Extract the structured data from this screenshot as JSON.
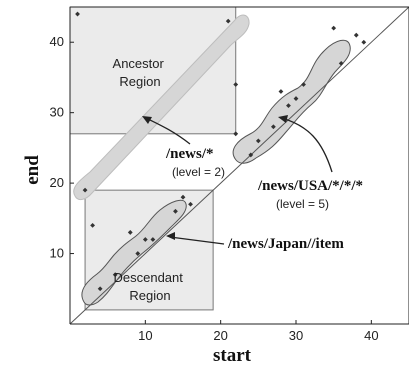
{
  "chart_data": {
    "type": "scatter",
    "xlabel": "start",
    "ylabel": "end",
    "xlim": [
      0,
      45
    ],
    "ylim": [
      0,
      45
    ],
    "x_ticks": [
      10,
      20,
      30,
      40
    ],
    "y_ticks": [
      10,
      20,
      30,
      40
    ],
    "diagonal": [
      [
        0,
        0
      ],
      [
        45,
        45
      ]
    ],
    "points": [
      [
        1,
        44
      ],
      [
        21,
        43
      ],
      [
        22,
        34
      ],
      [
        22,
        27
      ],
      [
        3,
        14
      ],
      [
        8,
        13
      ],
      [
        10,
        12
      ],
      [
        15,
        18
      ],
      [
        16,
        17
      ],
      [
        2,
        19
      ],
      [
        4,
        5
      ],
      [
        6,
        7
      ],
      [
        9,
        10
      ],
      [
        11,
        12
      ],
      [
        14,
        16
      ],
      [
        24,
        24
      ],
      [
        25,
        26
      ],
      [
        27,
        28
      ],
      [
        28,
        33
      ],
      [
        29,
        31
      ],
      [
        30,
        32
      ],
      [
        31,
        34
      ],
      [
        35,
        42
      ],
      [
        36,
        37
      ],
      [
        38,
        41
      ],
      [
        39,
        40
      ]
    ],
    "regions": [
      {
        "name": "ancestor",
        "label_lines": [
          "Ancestor",
          "Region"
        ],
        "x": [
          0,
          22
        ],
        "y": [
          27,
          45
        ]
      },
      {
        "name": "descendant",
        "label_lines": [
          "Descendant",
          "Region"
        ],
        "x": [
          2,
          19
        ],
        "y": [
          2,
          19
        ]
      }
    ],
    "groups": [
      {
        "name": "news-star",
        "label": "/news/*",
        "level": "(level = 2)"
      },
      {
        "name": "news-usa",
        "label": "/news/USA/*/*/*",
        "level": "(level = 5)"
      },
      {
        "name": "news-japan",
        "label": "/news/Japan//item",
        "level": ""
      }
    ]
  }
}
